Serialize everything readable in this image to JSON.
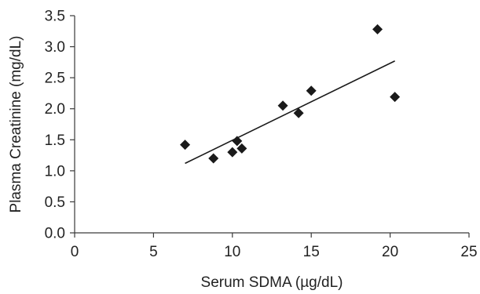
{
  "chart_data": {
    "type": "scatter",
    "title": "",
    "xlabel": "Serum SDMA (µg/dL)",
    "ylabel": "Plasma Creatinine (mg/dL)",
    "xlim": [
      0,
      25
    ],
    "ylim": [
      0,
      3.5
    ],
    "x_ticks": [
      0,
      5,
      10,
      15,
      20,
      25
    ],
    "y_ticks": [
      0.0,
      0.5,
      1.0,
      1.5,
      2.0,
      2.5,
      3.0,
      3.5
    ],
    "x_tick_labels": [
      "0",
      "5",
      "10",
      "15",
      "20",
      "25"
    ],
    "y_tick_labels": [
      "0.0",
      "0.5",
      "1.0",
      "1.5",
      "2.0",
      "2.5",
      "3.0",
      "3.5"
    ],
    "grid": false,
    "legend": "none",
    "marker": "diamond",
    "marker_color": "#1a1a1a",
    "points": [
      {
        "x": 7.0,
        "y": 1.42
      },
      {
        "x": 8.8,
        "y": 1.2
      },
      {
        "x": 10.0,
        "y": 1.3
      },
      {
        "x": 10.3,
        "y": 1.48
      },
      {
        "x": 10.6,
        "y": 1.36
      },
      {
        "x": 13.2,
        "y": 2.05
      },
      {
        "x": 14.2,
        "y": 1.93
      },
      {
        "x": 15.0,
        "y": 2.29
      },
      {
        "x": 19.2,
        "y": 3.28
      },
      {
        "x": 20.3,
        "y": 2.19
      }
    ],
    "trendline": {
      "type": "linear",
      "x_start": 7.0,
      "y_start": 1.12,
      "x_end": 20.3,
      "y_end": 2.77
    }
  }
}
